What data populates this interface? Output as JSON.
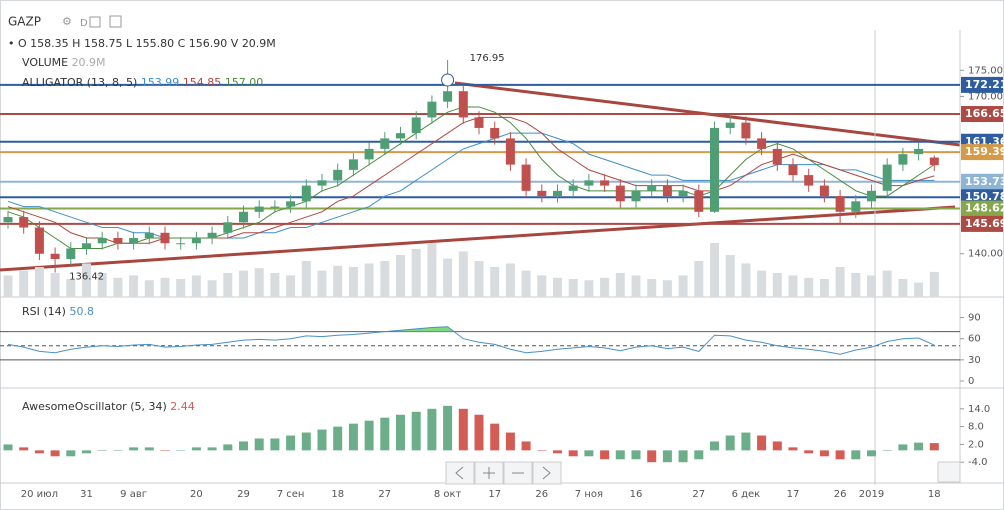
{
  "symbol": "GAZP",
  "interval": "D",
  "chart_data": [
    {
      "type": "candlestick",
      "categories": [
        null,
        null,
        "20 июл",
        null,
        null,
        "31",
        null,
        null,
        "9 авг",
        null,
        null,
        null,
        "20",
        null,
        null,
        "29",
        null,
        null,
        "7 сен",
        null,
        null,
        "18",
        null,
        null,
        "27",
        null,
        null,
        null,
        "8 окт",
        null,
        null,
        "17",
        null,
        null,
        "26",
        null,
        null,
        "7 ноя",
        null,
        null,
        "16",
        null,
        null,
        null,
        "27",
        null,
        null,
        "6 дек",
        null,
        null,
        "17",
        null,
        null,
        "26",
        null,
        "2019",
        null,
        null,
        null,
        "18"
      ],
      "open": [
        146,
        147,
        145,
        140,
        139,
        141,
        142,
        143,
        142,
        143,
        144,
        142,
        142,
        143,
        144,
        146,
        148,
        149,
        149,
        150,
        153,
        154,
        156,
        158,
        160,
        162,
        163,
        166,
        169,
        171,
        166,
        164,
        162,
        157,
        152,
        151,
        152,
        153,
        154,
        153,
        150,
        152,
        153,
        151,
        152,
        148,
        164,
        165,
        162,
        160,
        157,
        155,
        153,
        151,
        148,
        150,
        152,
        157,
        159,
        158.35
      ],
      "high": [
        148.2,
        148.2,
        146.2,
        141.2,
        142.2,
        143.2,
        144.2,
        144.2,
        144.2,
        145.2,
        145.2,
        143.2,
        144.2,
        145.2,
        147.2,
        149.2,
        150.2,
        150.2,
        151.2,
        154.2,
        155.2,
        157.2,
        159.2,
        161.2,
        163.2,
        164.2,
        167.2,
        170.2,
        176.95,
        172.2,
        167.2,
        165.2,
        163.2,
        158.2,
        153.2,
        153.2,
        154.2,
        155.2,
        155.2,
        154.2,
        153.2,
        154.2,
        154.2,
        153.2,
        153.2,
        165.2,
        166.2,
        166.2,
        163.2,
        161.2,
        158.2,
        156.2,
        154.2,
        152.2,
        151.2,
        153.2,
        158.2,
        160.2,
        161.2,
        158.75
      ],
      "low": [
        144.8,
        143.8,
        138.8,
        136.42,
        137.8,
        139.8,
        140.8,
        140.8,
        140.8,
        141.8,
        140.8,
        140.8,
        140.8,
        141.8,
        142.8,
        144.8,
        146.8,
        147.8,
        147.8,
        148.8,
        151.8,
        152.8,
        154.8,
        156.8,
        158.8,
        160.8,
        161.8,
        164.8,
        167.8,
        164.8,
        162.8,
        160.8,
        155.8,
        150.8,
        149.8,
        149.8,
        150.8,
        151.8,
        151.8,
        148.8,
        148.8,
        150.8,
        149.8,
        149.8,
        147,
        147.8,
        162.8,
        160.8,
        158.8,
        155.8,
        153.8,
        151.8,
        149.8,
        145.5,
        146.8,
        148.8,
        150.8,
        155.8,
        157.8,
        155.8
      ],
      "close": [
        147,
        145,
        140,
        139,
        141,
        142,
        143,
        142,
        143,
        144,
        142,
        142,
        143,
        144,
        146,
        148,
        149,
        149,
        150,
        153,
        154,
        156,
        158,
        160,
        162,
        163,
        166,
        169,
        171,
        166,
        164,
        162,
        157,
        152,
        151,
        152,
        153,
        154,
        153,
        150,
        152,
        153,
        151,
        152,
        148,
        164,
        165,
        162,
        160,
        157,
        155,
        153,
        151,
        148,
        150,
        152,
        157,
        159,
        160,
        156.9
      ],
      "up_color": "#4f9e74",
      "down_color": "#c0504d",
      "readout": [
        {
          "label": "O",
          "value": "158.35"
        },
        {
          "label": "H",
          "value": "158.75"
        },
        {
          "label": "L",
          "value": "155.80"
        },
        {
          "label": "C",
          "value": "156.90"
        },
        {
          "label": "V",
          "value": "20.9M"
        }
      ],
      "volume": {
        "name": "VOLUME",
        "readout": "20.9M",
        "color": "#d9dcdf",
        "ylim": [
          0,
          100
        ],
        "values": [
          18,
          22,
          25,
          20,
          15,
          28,
          20,
          16,
          18,
          14,
          16,
          15,
          18,
          14,
          20,
          22,
          24,
          20,
          18,
          30,
          22,
          26,
          25,
          28,
          30,
          35,
          40,
          45,
          32,
          38,
          30,
          25,
          28,
          22,
          18,
          16,
          15,
          14,
          16,
          20,
          18,
          15,
          14,
          18,
          30,
          45,
          35,
          28,
          22,
          20,
          18,
          16,
          15,
          25,
          20,
          18,
          22,
          15,
          12,
          20.9
        ]
      },
      "indicator": {
        "name": "ALLIGATOR (13, 8, 5)",
        "series": [
          {
            "color": "#3d8fc9",
            "readout": "153.99",
            "values": [
              150,
              149,
              149,
              148,
              147,
              146,
              145,
              145,
              144,
              144,
              143,
              143,
              143,
              143,
              143,
              143,
              144,
              144,
              145,
              145,
              146,
              147,
              148,
              149,
              151,
              152,
              154,
              156,
              158,
              160,
              161,
              162,
              163,
              163,
              163,
              162,
              161,
              159,
              158,
              157,
              156,
              155,
              155,
              154,
              154,
              154,
              154,
              155,
              156,
              157,
              157,
              157,
              157,
              156,
              156,
              155,
              154,
              154,
              154,
              153.99
            ]
          },
          {
            "color": "#b0463f",
            "readout": "154.85",
            "values": [
              149,
              148,
              147,
              146,
              144,
              143,
              143,
              142,
              142,
              142,
              143,
              143,
              143,
              143,
              143,
              144,
              144,
              145,
              146,
              147,
              148,
              150,
              151,
              153,
              155,
              157,
              159,
              161,
              163,
              165,
              166,
              166,
              166,
              165,
              163,
              160,
              158,
              156,
              155,
              154,
              153,
              153,
              153,
              153,
              152,
              152,
              153,
              155,
              157,
              158,
              159,
              158,
              157,
              156,
              155,
              154,
              153,
              153,
              154,
              154.85
            ]
          },
          {
            "color": "#4a8c3c",
            "readout": "157.00",
            "values": [
              148,
              147,
              145,
              143,
              141,
              141,
              141,
              142,
              142,
              143,
              143,
              143,
              143,
              143,
              144,
              145,
              146,
              148,
              149,
              150,
              152,
              153,
              155,
              157,
              159,
              161,
              163,
              165,
              167,
              168,
              168,
              167,
              165,
              162,
              158,
              155,
              153,
              152,
              152,
              152,
              152,
              152,
              152,
              152,
              151,
              152,
              155,
              158,
              160,
              161,
              160,
              158,
              156,
              154,
              152,
              151,
              151,
              153,
              155,
              157
            ]
          }
        ]
      },
      "price_lines": [
        {
          "value": 172.21,
          "color": "#2e5d9f"
        },
        {
          "value": 166.65,
          "color": "#ad4a44"
        },
        {
          "value": 161.36,
          "color": "#2e5d9f"
        },
        {
          "value": 159.39,
          "color": "#d49a4a"
        },
        {
          "value": 153.73,
          "color": "#8fb5d6"
        },
        {
          "value": 150.78,
          "color": "#2e5d9f"
        },
        {
          "value": 148.62,
          "color": "#86a84a"
        },
        {
          "value": 145.69,
          "color": "#ad4a44"
        }
      ],
      "ylim": [
        131.75,
        188.4
      ],
      "yticks": [
        {
          "value": 140,
          "label": "140.00"
        },
        {
          "value": 170,
          "label": "170.00"
        },
        {
          "value": 175,
          "label": "175.00"
        }
      ]
    },
    {
      "type": "line",
      "title": "RSI (14)",
      "color": "#4a90c8",
      "fill_color": "#7fd87f",
      "values": [
        52,
        48,
        42,
        40,
        45,
        48,
        50,
        49,
        51,
        52,
        48,
        49,
        51,
        52,
        55,
        58,
        59,
        58,
        60,
        64,
        63,
        65,
        66,
        68,
        70,
        72,
        74,
        76,
        77,
        60,
        55,
        52,
        45,
        40,
        42,
        45,
        47,
        49,
        47,
        43,
        48,
        50,
        46,
        48,
        42,
        65,
        64,
        58,
        55,
        50,
        47,
        45,
        42,
        38,
        44,
        48,
        56,
        60,
        61,
        50.8
      ],
      "levels": [
        70,
        50,
        30
      ],
      "ylim": [
        -10,
        115
      ],
      "yticks": [
        0,
        30,
        60,
        90
      ]
    },
    {
      "type": "bar",
      "title": "AwesomeOscillator (5, 34)",
      "up_color": "#6cae8a",
      "down_color": "#d35c55",
      "values": [
        2,
        1,
        -1,
        -2,
        -2,
        -1,
        0,
        0,
        1,
        1,
        0,
        0,
        1,
        1,
        2,
        3,
        4,
        4,
        5,
        6,
        7,
        8,
        9,
        10,
        11,
        12,
        13,
        14,
        15,
        14,
        12,
        9,
        6,
        3,
        0,
        -1,
        -2,
        -2,
        -3,
        -3,
        -3,
        -4,
        -4,
        -4,
        -3,
        3,
        5,
        6,
        5,
        3,
        1,
        -1,
        -2,
        -3,
        -3,
        -2,
        0,
        2,
        2.6,
        2.44
      ],
      "ylim": [
        -11,
        20
      ],
      "yticks": [
        {
          "value": -4,
          "label": "-4.0"
        },
        {
          "value": 2,
          "label": "2.0"
        },
        {
          "value": 8,
          "label": "8.0"
        },
        {
          "value": 14,
          "label": "14.0"
        }
      ]
    }
  ]
}
